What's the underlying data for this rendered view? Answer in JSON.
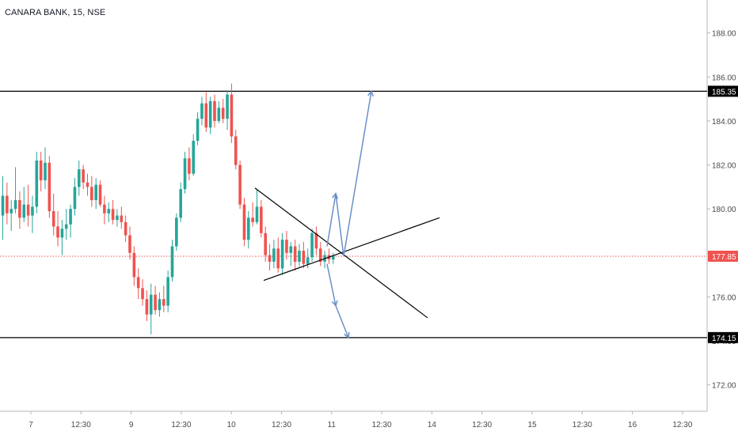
{
  "header": {
    "symbol_label": "CANARA BANK, 15, NSE"
  },
  "chart_data": {
    "type": "candlestick",
    "title": "CANARA BANK, 15, NSE",
    "ylim": [
      170.8,
      189.5
    ],
    "price_ticks": [
      "172.00",
      "174.00",
      "176.00",
      "178.00",
      "180.00",
      "182.00",
      "184.00",
      "186.00",
      "188.00"
    ],
    "time_ticks": [
      "7",
      "12:30",
      "9",
      "12:30",
      "10",
      "12:30",
      "11",
      "12:30",
      "14",
      "12:30",
      "15",
      "12:30",
      "16",
      "12:30"
    ],
    "candles": [
      {
        "o": 179.7,
        "h": 181.5,
        "l": 178.6,
        "c": 180.6
      },
      {
        "o": 180.6,
        "h": 181.2,
        "l": 179.3,
        "c": 179.8
      },
      {
        "o": 179.8,
        "h": 180.4,
        "l": 179.0,
        "c": 180.0
      },
      {
        "o": 180.0,
        "h": 181.9,
        "l": 179.8,
        "c": 180.4
      },
      {
        "o": 180.4,
        "h": 180.8,
        "l": 179.1,
        "c": 179.6
      },
      {
        "o": 179.6,
        "h": 181.0,
        "l": 179.4,
        "c": 180.2
      },
      {
        "o": 180.2,
        "h": 181.1,
        "l": 179.2,
        "c": 179.7
      },
      {
        "o": 179.7,
        "h": 180.6,
        "l": 178.9,
        "c": 180.1
      },
      {
        "o": 180.1,
        "h": 182.6,
        "l": 179.8,
        "c": 182.2
      },
      {
        "o": 182.2,
        "h": 182.6,
        "l": 180.8,
        "c": 181.3
      },
      {
        "o": 181.3,
        "h": 182.8,
        "l": 180.9,
        "c": 182.1
      },
      {
        "o": 182.1,
        "h": 182.4,
        "l": 179.6,
        "c": 179.9
      },
      {
        "o": 179.9,
        "h": 180.7,
        "l": 178.8,
        "c": 179.2
      },
      {
        "o": 179.2,
        "h": 179.9,
        "l": 178.3,
        "c": 178.7
      },
      {
        "o": 178.7,
        "h": 179.5,
        "l": 177.9,
        "c": 179.1
      },
      {
        "o": 179.1,
        "h": 180.0,
        "l": 178.6,
        "c": 179.3
      },
      {
        "o": 179.3,
        "h": 180.2,
        "l": 178.7,
        "c": 180.0
      },
      {
        "o": 180.0,
        "h": 181.4,
        "l": 179.7,
        "c": 181.0
      },
      {
        "o": 181.0,
        "h": 182.2,
        "l": 180.6,
        "c": 181.8
      },
      {
        "o": 181.8,
        "h": 182.0,
        "l": 180.9,
        "c": 181.2
      },
      {
        "o": 181.2,
        "h": 181.6,
        "l": 180.6,
        "c": 181.0
      },
      {
        "o": 181.0,
        "h": 181.5,
        "l": 180.1,
        "c": 180.4
      },
      {
        "o": 180.4,
        "h": 181.4,
        "l": 180.0,
        "c": 181.1
      },
      {
        "o": 181.1,
        "h": 181.3,
        "l": 180.1,
        "c": 180.2
      },
      {
        "o": 180.2,
        "h": 180.6,
        "l": 179.3,
        "c": 179.8
      },
      {
        "o": 179.8,
        "h": 180.3,
        "l": 179.4,
        "c": 180.0
      },
      {
        "o": 180.0,
        "h": 180.4,
        "l": 179.3,
        "c": 179.5
      },
      {
        "o": 179.5,
        "h": 180.0,
        "l": 179.2,
        "c": 179.7
      },
      {
        "o": 179.7,
        "h": 180.1,
        "l": 179.1,
        "c": 179.4
      },
      {
        "o": 179.4,
        "h": 179.7,
        "l": 178.5,
        "c": 178.8
      },
      {
        "o": 178.8,
        "h": 179.2,
        "l": 177.7,
        "c": 178.0
      },
      {
        "o": 178.0,
        "h": 178.3,
        "l": 176.5,
        "c": 176.9
      },
      {
        "o": 176.9,
        "h": 177.3,
        "l": 175.9,
        "c": 176.4
      },
      {
        "o": 176.4,
        "h": 176.8,
        "l": 175.6,
        "c": 175.9
      },
      {
        "o": 175.9,
        "h": 176.3,
        "l": 174.9,
        "c": 175.2
      },
      {
        "o": 175.2,
        "h": 176.6,
        "l": 174.3,
        "c": 176.1
      },
      {
        "o": 176.1,
        "h": 176.5,
        "l": 175.2,
        "c": 175.4
      },
      {
        "o": 175.4,
        "h": 176.2,
        "l": 175.1,
        "c": 175.9
      },
      {
        "o": 175.9,
        "h": 176.5,
        "l": 175.3,
        "c": 175.6
      },
      {
        "o": 175.6,
        "h": 177.2,
        "l": 175.3,
        "c": 176.9
      },
      {
        "o": 176.9,
        "h": 178.6,
        "l": 176.7,
        "c": 178.3
      },
      {
        "o": 178.3,
        "h": 179.8,
        "l": 178.1,
        "c": 179.6
      },
      {
        "o": 179.6,
        "h": 181.2,
        "l": 179.4,
        "c": 180.9
      },
      {
        "o": 180.9,
        "h": 182.6,
        "l": 180.7,
        "c": 182.3
      },
      {
        "o": 182.3,
        "h": 182.8,
        "l": 181.3,
        "c": 181.6
      },
      {
        "o": 181.6,
        "h": 183.4,
        "l": 181.5,
        "c": 183.1
      },
      {
        "o": 183.1,
        "h": 184.4,
        "l": 182.9,
        "c": 184.1
      },
      {
        "o": 184.1,
        "h": 185.1,
        "l": 183.8,
        "c": 184.8
      },
      {
        "o": 184.8,
        "h": 185.3,
        "l": 183.5,
        "c": 183.7
      },
      {
        "o": 183.7,
        "h": 185.1,
        "l": 183.4,
        "c": 184.9
      },
      {
        "o": 184.9,
        "h": 185.2,
        "l": 183.7,
        "c": 184.0
      },
      {
        "o": 184.0,
        "h": 184.9,
        "l": 183.9,
        "c": 184.6
      },
      {
        "o": 184.6,
        "h": 185.0,
        "l": 183.9,
        "c": 184.1
      },
      {
        "o": 184.1,
        "h": 185.4,
        "l": 183.6,
        "c": 185.2
      },
      {
        "o": 185.2,
        "h": 185.7,
        "l": 183.0,
        "c": 183.3
      },
      {
        "o": 183.3,
        "h": 183.6,
        "l": 181.8,
        "c": 182.0
      },
      {
        "o": 182.0,
        "h": 182.2,
        "l": 180.0,
        "c": 180.2
      },
      {
        "o": 180.2,
        "h": 180.5,
        "l": 178.3,
        "c": 178.6
      },
      {
        "o": 178.6,
        "h": 179.9,
        "l": 178.2,
        "c": 179.6
      },
      {
        "o": 179.6,
        "h": 180.3,
        "l": 179.2,
        "c": 179.4
      },
      {
        "o": 179.4,
        "h": 180.9,
        "l": 179.3,
        "c": 180.1
      },
      {
        "o": 180.1,
        "h": 180.4,
        "l": 178.7,
        "c": 178.9
      },
      {
        "o": 178.9,
        "h": 179.2,
        "l": 177.6,
        "c": 177.9
      },
      {
        "o": 177.9,
        "h": 178.4,
        "l": 177.2,
        "c": 177.6
      },
      {
        "o": 177.6,
        "h": 178.6,
        "l": 177.3,
        "c": 178.2
      },
      {
        "o": 178.2,
        "h": 178.7,
        "l": 177.1,
        "c": 177.3
      },
      {
        "o": 177.3,
        "h": 178.9,
        "l": 177.0,
        "c": 178.6
      },
      {
        "o": 178.6,
        "h": 179.0,
        "l": 177.7,
        "c": 178.0
      },
      {
        "o": 178.0,
        "h": 178.5,
        "l": 177.4,
        "c": 178.3
      },
      {
        "o": 178.3,
        "h": 178.6,
        "l": 177.2,
        "c": 177.6
      },
      {
        "o": 177.6,
        "h": 178.4,
        "l": 177.4,
        "c": 178.1
      },
      {
        "o": 178.1,
        "h": 178.5,
        "l": 177.3,
        "c": 177.5
      },
      {
        "o": 177.5,
        "h": 178.2,
        "l": 177.3,
        "c": 177.8
      },
      {
        "o": 177.8,
        "h": 179.1,
        "l": 177.6,
        "c": 178.9
      },
      {
        "o": 178.9,
        "h": 179.2,
        "l": 177.9,
        "c": 178.2
      },
      {
        "o": 178.2,
        "h": 178.5,
        "l": 177.4,
        "c": 177.6
      },
      {
        "o": 177.6,
        "h": 178.1,
        "l": 177.3,
        "c": 177.9
      },
      {
        "o": 177.9,
        "h": 178.2,
        "l": 177.5,
        "c": 177.7
      },
      {
        "o": 177.7,
        "h": 178.0,
        "l": 177.5,
        "c": 177.85
      }
    ],
    "horizontal_levels": [
      {
        "price": 185.35,
        "label": "185.35"
      },
      {
        "price": 174.15,
        "label": "174.15"
      }
    ],
    "last_price": {
      "price": 177.85,
      "label": "177.85"
    },
    "colors": {
      "up": "#26a69a",
      "down": "#ef5350",
      "level_line": "#000000",
      "trend_line": "#000000",
      "arrow": "#6b8fc9",
      "last_price": "#ef5350",
      "axis_text": "#4a4a4a",
      "axis_border": "#b2b5be"
    }
  }
}
